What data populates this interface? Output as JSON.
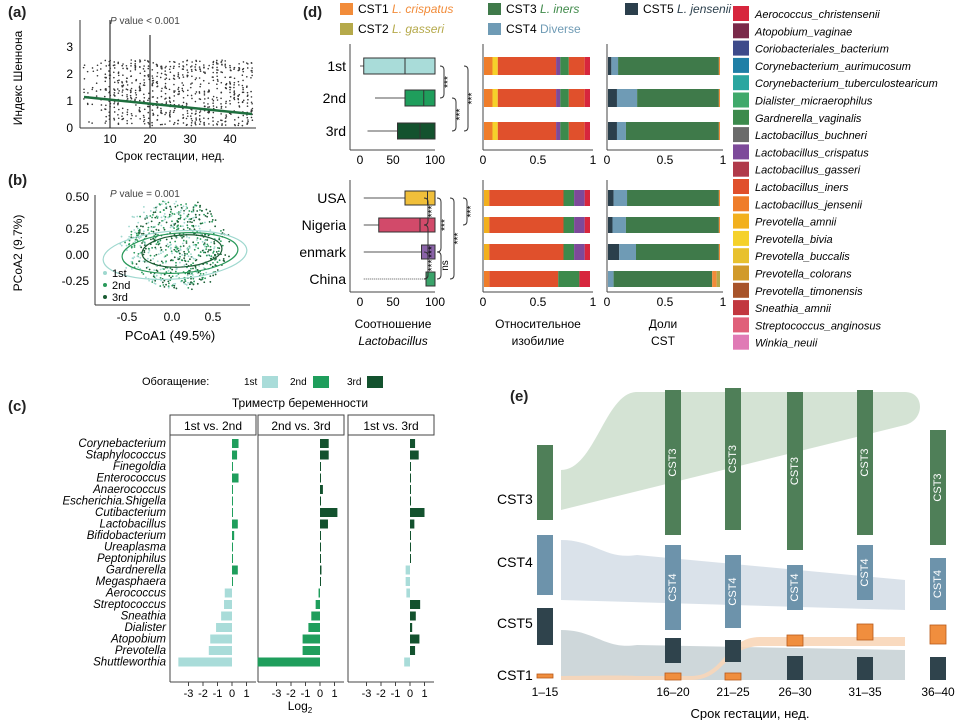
{
  "panels": {
    "a": {
      "letter": "(a)",
      "ylabel": "Индекс Шеннона",
      "xlabel": "Срок гестации, нед.",
      "annotation_p": "P",
      "annotation_rest": " value < 0.001",
      "x_ticks": [
        "10",
        "20",
        "30",
        "40"
      ],
      "y_ticks": [
        "0",
        "1",
        "2",
        "3"
      ]
    },
    "b": {
      "letter": "(b)",
      "ylabel": "PCoA2 (9.7%)",
      "xlabel": "PCoA1 (49.5%)",
      "annotation_p": "P",
      "annotation_rest": " value = 0.001",
      "x_ticks": [
        "-0.5",
        "0.0",
        "0.5"
      ],
      "y_ticks": [
        "0.50",
        "0.25",
        "0.00",
        "-0.25"
      ],
      "legend": [
        "1st",
        "2nd",
        "3rd"
      ]
    },
    "c": {
      "letter": "(c)",
      "enrichment_label": "Обогащение:",
      "enrichment_items": [
        "1st",
        "2nd",
        "3rd"
      ],
      "trimester_title": "Триместр беременности",
      "facets": [
        "1st vs. 2nd",
        "2nd vs. 3rd",
        "1st vs. 3rd"
      ],
      "taxa": [
        "Corynebacterium",
        "Staphylococcus",
        "Finegoldia",
        "Enterococcus",
        "Anaerococcus",
        "Escherichia.Shigella",
        "Cutibacterium",
        "Lactobacillus",
        "Bifidobacterium",
        "Ureaplasma",
        "Peptoniphilus",
        "Gardnerella",
        "Megasphaera",
        "Aerococcus",
        "Streptococcus",
        "Sneathia",
        "Dialister",
        "Atopobium",
        "Prevotella",
        "Shuttleworthia"
      ],
      "x_ticks": [
        "-3",
        "-2",
        "-1",
        "0",
        "1"
      ],
      "xlabel": "Log",
      "xlabel_sub": "2",
      "colors": {
        "first": "#a9dcd9",
        "second": "#1f9e5c",
        "third": "#13522e"
      }
    },
    "d": {
      "letter": "(d)",
      "cst_legend": [
        {
          "cst": "CST1",
          "name": "L. crispatus",
          "color": "#f28c3a",
          "namecolor": "#f28c3a",
          "italic": true
        },
        {
          "cst": "CST2",
          "name": "L. gasseri",
          "color": "#b5a94a",
          "namecolor": "#b5a94a",
          "italic": true
        },
        {
          "cst": "CST3",
          "name": "L. iners",
          "color": "#3f7a4a",
          "namecolor": "#3f8a4a",
          "italic": true
        },
        {
          "cst": "CST4",
          "name": "Diverse",
          "color": "#6f9bb5",
          "namecolor": "#6f9bb5",
          "italic": false
        },
        {
          "cst": "CST5",
          "name": "L. jensenii",
          "color": "#2b3f4c",
          "namecolor": "#2b3f4c",
          "italic": true
        }
      ],
      "groups_top": [
        "1st",
        "2nd",
        "3rd"
      ],
      "groups_bottom": [
        "USA",
        "Nigeria",
        "Denmark",
        "China"
      ],
      "ratio_ticks": [
        "0",
        "50",
        "100"
      ],
      "abund_ticks": [
        "0",
        "0.5",
        "1"
      ],
      "col_label_1a": "Соотношение",
      "col_label_1b": "Lactobacillus",
      "col_label_2a": "Относительное",
      "col_label_2b": "изобилие",
      "col_label_3a": "Доли",
      "col_label_3b": "CST",
      "sig_top": [
        "***",
        "***",
        "***"
      ],
      "sig_bottom": [
        "***",
        "***",
        "***",
        "***",
        "***",
        "ns",
        "***"
      ],
      "taxa_legend": [
        {
          "name": "Aerococcus_christensenii",
          "color": "#d7263d"
        },
        {
          "name": "Atopobium_vaginae",
          "color": "#7a2a4a"
        },
        {
          "name": "Coriobacteriales_bacterium",
          "color": "#3d4a8a"
        },
        {
          "name": "Corynebacterium_aurimucosum",
          "color": "#1f7fa6"
        },
        {
          "name": "Corynebacterium_tuberculostearicum",
          "color": "#2aa6a0"
        },
        {
          "name": "Dialister_micraerophilus",
          "color": "#3fa96a"
        },
        {
          "name": "Gardnerella_vaginalis",
          "color": "#3c8a4c"
        },
        {
          "name": "Lactobacillus_buchneri",
          "color": "#6b6b6b"
        },
        {
          "name": "Lactobacillus_crispatus",
          "color": "#7d4a9a"
        },
        {
          "name": "Lactobacillus_gasseri",
          "color": "#b03a4a"
        },
        {
          "name": "Lactobacillus_iners",
          "color": "#e0502c"
        },
        {
          "name": "Lactobacillus_jensenii",
          "color": "#ef7d2a"
        },
        {
          "name": "Prevotella_amnii",
          "color": "#f2b01e"
        },
        {
          "name": "Prevotella_bivia",
          "color": "#f5d12a"
        },
        {
          "name": "Prevotella_buccalis",
          "color": "#e8c12e"
        },
        {
          "name": "Prevotella_colorans",
          "color": "#d19a2a"
        },
        {
          "name": "Prevotella_timonensis",
          "color": "#a8542a"
        },
        {
          "name": "Sneathia_amnii",
          "color": "#c2373f"
        },
        {
          "name": "Streptococcus_anginosus",
          "color": "#e0607a"
        },
        {
          "name": "Winkia_neuii",
          "color": "#e07ab5"
        }
      ]
    },
    "e": {
      "letter": "(e)",
      "xlabel": "Срок гестации, нед.",
      "x_ticks": [
        "1–15",
        "16–20",
        "21–25",
        "26–30",
        "31–35",
        "36–40"
      ],
      "row_labels": [
        "CST3",
        "CST4",
        "CST5",
        "CST1"
      ],
      "colors": {
        "cst3": "#4f7f58",
        "cst4": "#6d93ab",
        "cst5": "#2f434c",
        "cst1": "#f08e3e",
        "flow3": "#cfe0cf",
        "flow4": "#d6dfe8",
        "flow5": "#c9d3d6",
        "flow1": "#f8d6b8"
      }
    }
  }
}
